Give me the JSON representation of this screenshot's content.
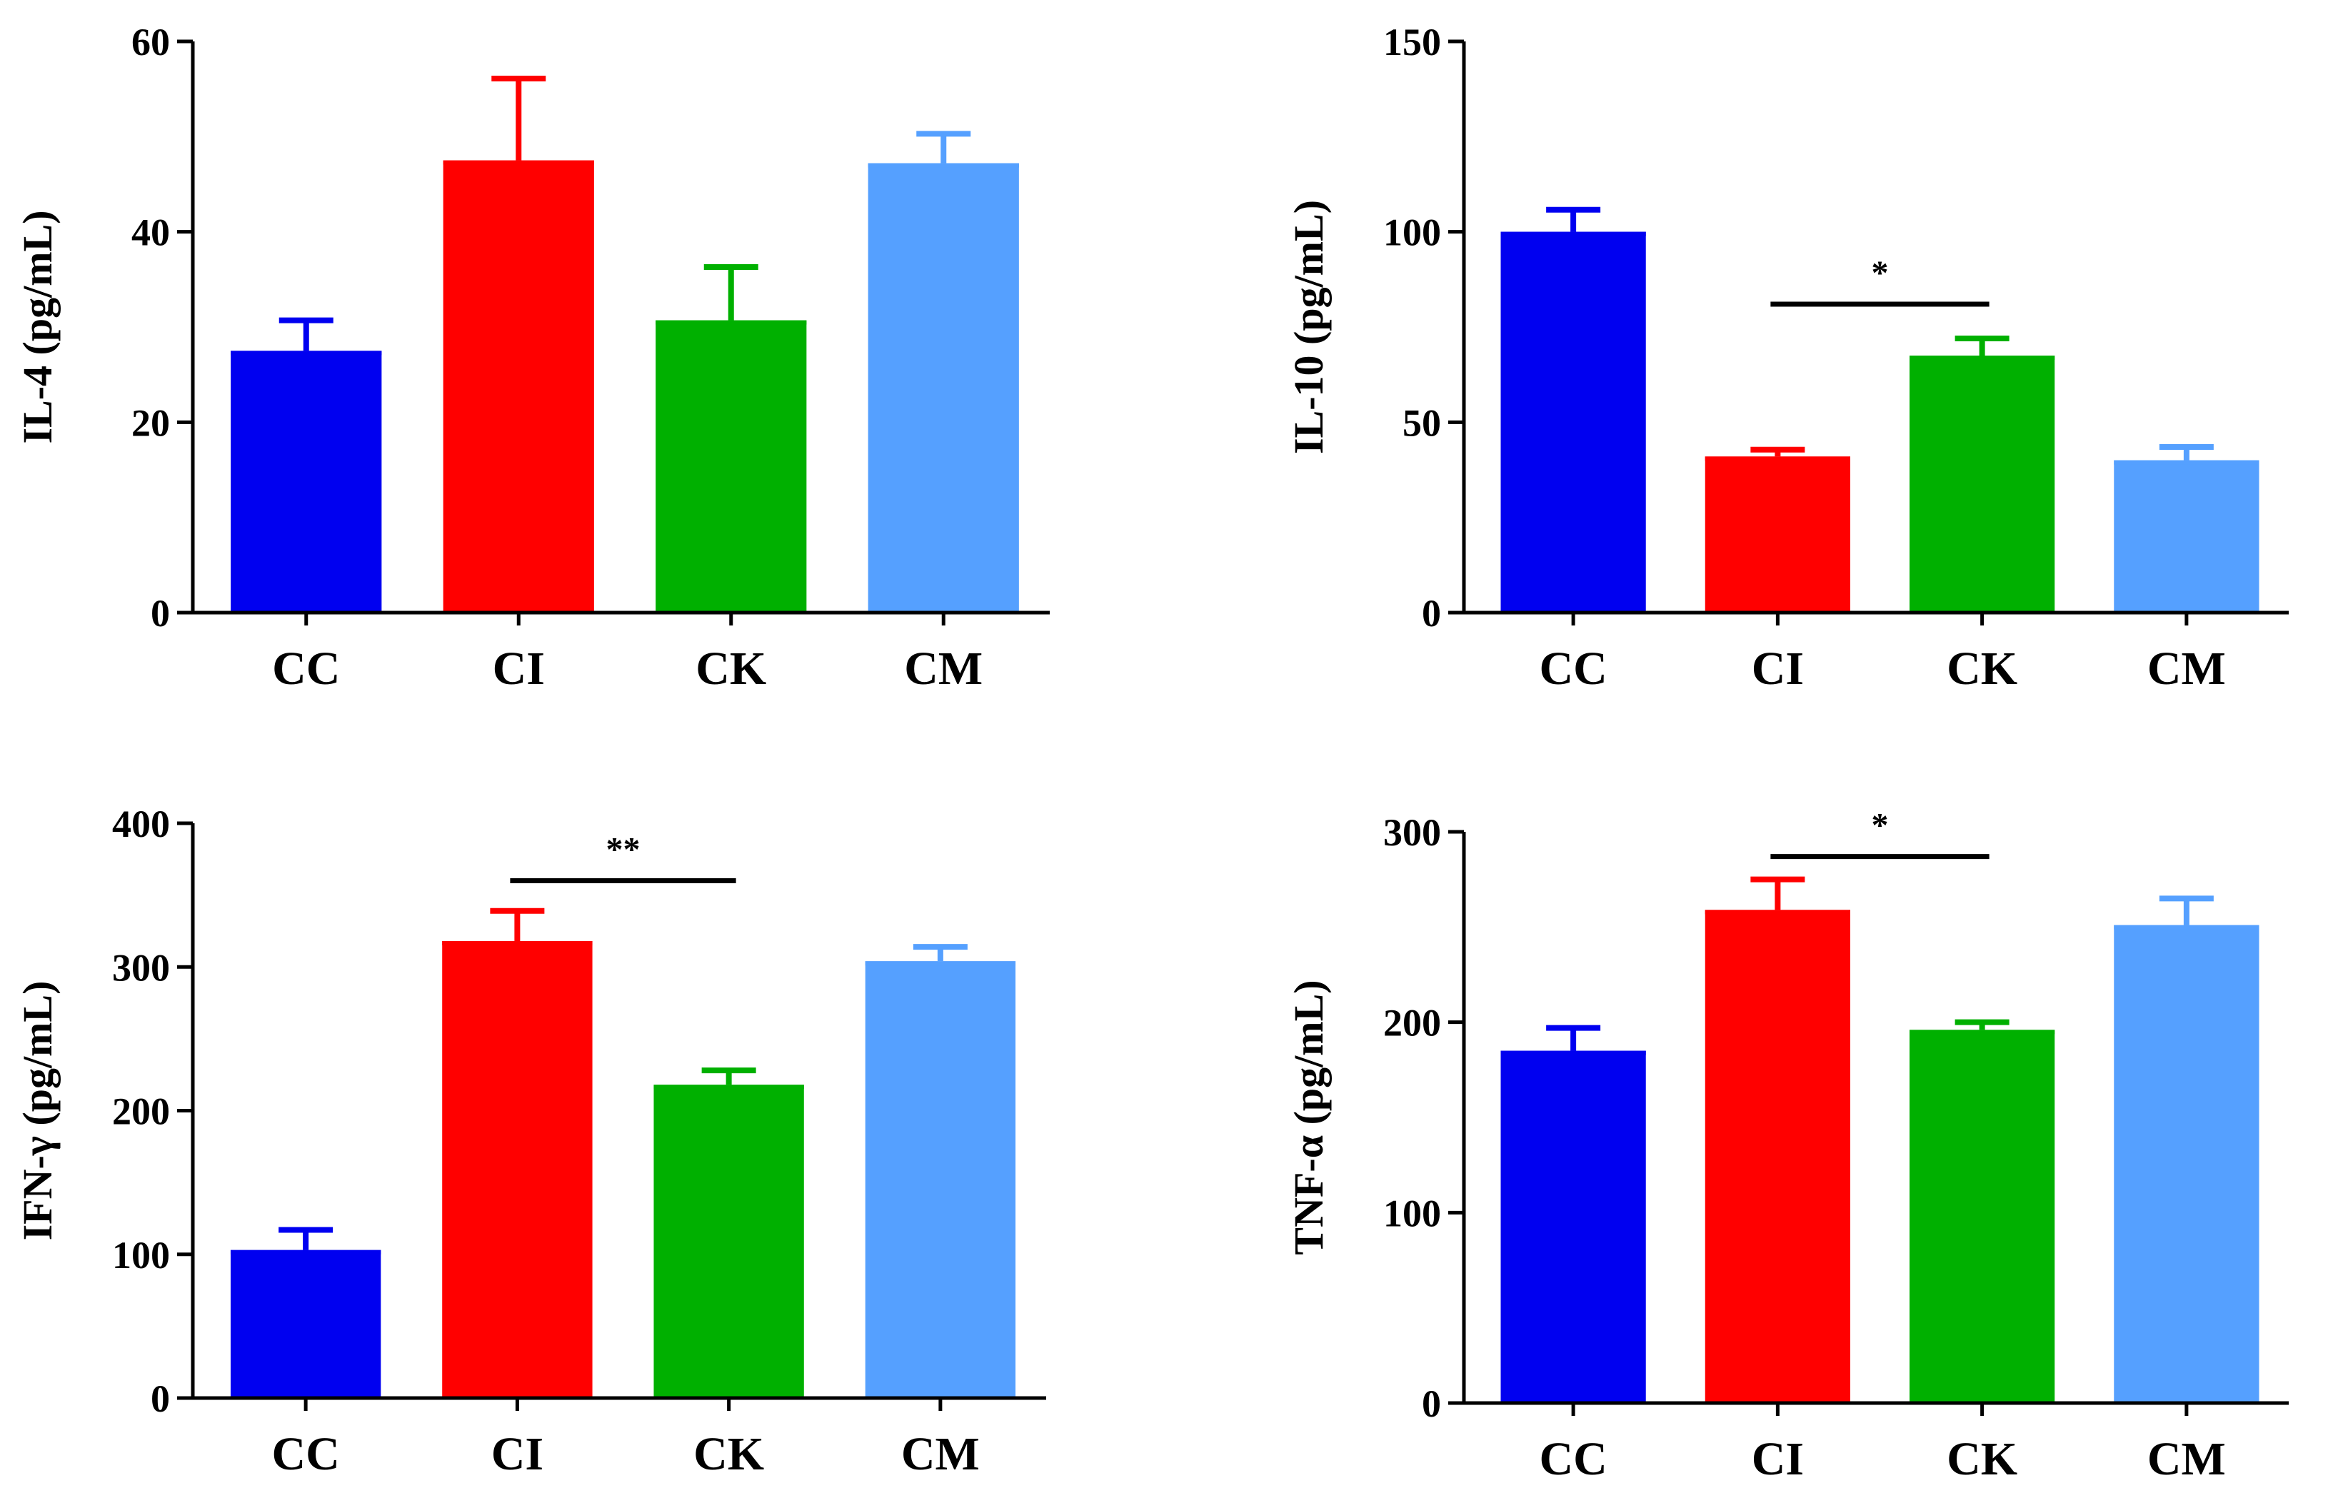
{
  "colors": {
    "CC": "#0000f0",
    "CI": "#ff0000",
    "CK": "#00b000",
    "CM": "#55a0ff",
    "axis": "#000000"
  },
  "chart_data": [
    {
      "type": "bar",
      "title": "",
      "xlabel": "",
      "ylabel": "IL-4 (pg/mL)",
      "ylim": [
        0,
        60
      ],
      "yticks": [
        0,
        20,
        40,
        60
      ],
      "categories": [
        "CC",
        "CI",
        "CK",
        "CM"
      ],
      "values": [
        27.5,
        47.5,
        30.7,
        47.2
      ],
      "errors": [
        3.2,
        8.6,
        5.6,
        3.1
      ],
      "significance": []
    },
    {
      "type": "bar",
      "title": "",
      "xlabel": "",
      "ylabel": "IL-10 (pg/mL)",
      "ylim": [
        0,
        150
      ],
      "yticks": [
        0,
        50,
        100,
        150
      ],
      "categories": [
        "CC",
        "CI",
        "CK",
        "CM"
      ],
      "values": [
        100,
        41,
        67.5,
        40
      ],
      "errors": [
        5.8,
        1.8,
        4.5,
        3.5
      ],
      "significance": [
        {
          "from": "CI",
          "to": "CK",
          "label": "*",
          "y": 81
        }
      ]
    },
    {
      "type": "bar",
      "title": "",
      "xlabel": "",
      "ylabel": "IFN-γ (pg/mL)",
      "ylim": [
        0,
        400
      ],
      "yticks": [
        0,
        100,
        200,
        300,
        400
      ],
      "categories": [
        "CC",
        "CI",
        "CK",
        "CM"
      ],
      "values": [
        103,
        318,
        218,
        304
      ],
      "errors": [
        14,
        21,
        10,
        10
      ],
      "significance": [
        {
          "from": "CI",
          "to": "CK",
          "label": "**",
          "y": 360
        }
      ]
    },
    {
      "type": "bar",
      "title": "",
      "xlabel": "",
      "ylabel": "TNF-α (pg/mL)",
      "ylim": [
        0,
        300
      ],
      "yticks": [
        0,
        100,
        200,
        300
      ],
      "categories": [
        "CC",
        "CI",
        "CK",
        "CM"
      ],
      "values": [
        185,
        259,
        196,
        251
      ],
      "errors": [
        12,
        16,
        4,
        14
      ],
      "significance": [
        {
          "from": "CI",
          "to": "CK",
          "label": "*",
          "y": 287
        }
      ]
    }
  ]
}
